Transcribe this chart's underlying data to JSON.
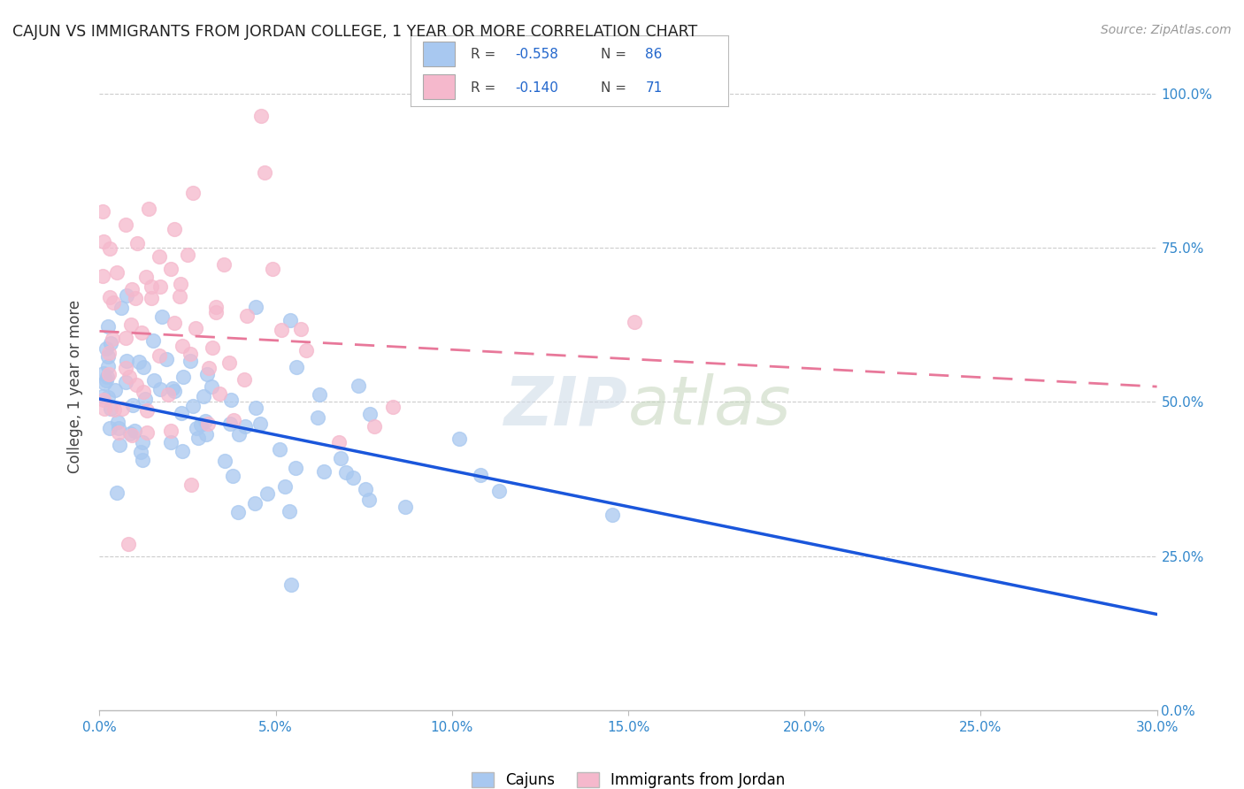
{
  "title": "CAJUN VS IMMIGRANTS FROM JORDAN COLLEGE, 1 YEAR OR MORE CORRELATION CHART",
  "source": "Source: ZipAtlas.com",
  "ylabel_label": "College, 1 year or more",
  "legend_label1": "Cajuns",
  "legend_label2": "Immigrants from Jordan",
  "R1": "-0.558",
  "N1": "86",
  "R2": "-0.140",
  "N2": "71",
  "color_blue": "#a8c8f0",
  "color_pink": "#f5b8cc",
  "line_blue": "#1a56db",
  "line_pink": "#e8789a",
  "xmin": 0.0,
  "xmax": 0.3,
  "ymin": 0.0,
  "ymax": 1.05,
  "x_ticks": [
    0.0,
    0.05,
    0.1,
    0.15,
    0.2,
    0.25,
    0.3
  ],
  "y_ticks": [
    0.0,
    0.25,
    0.5,
    0.75,
    1.0
  ],
  "blue_intercept": 0.505,
  "blue_slope": -1.165,
  "pink_intercept": 0.615,
  "pink_slope": -0.3,
  "seed": 17
}
